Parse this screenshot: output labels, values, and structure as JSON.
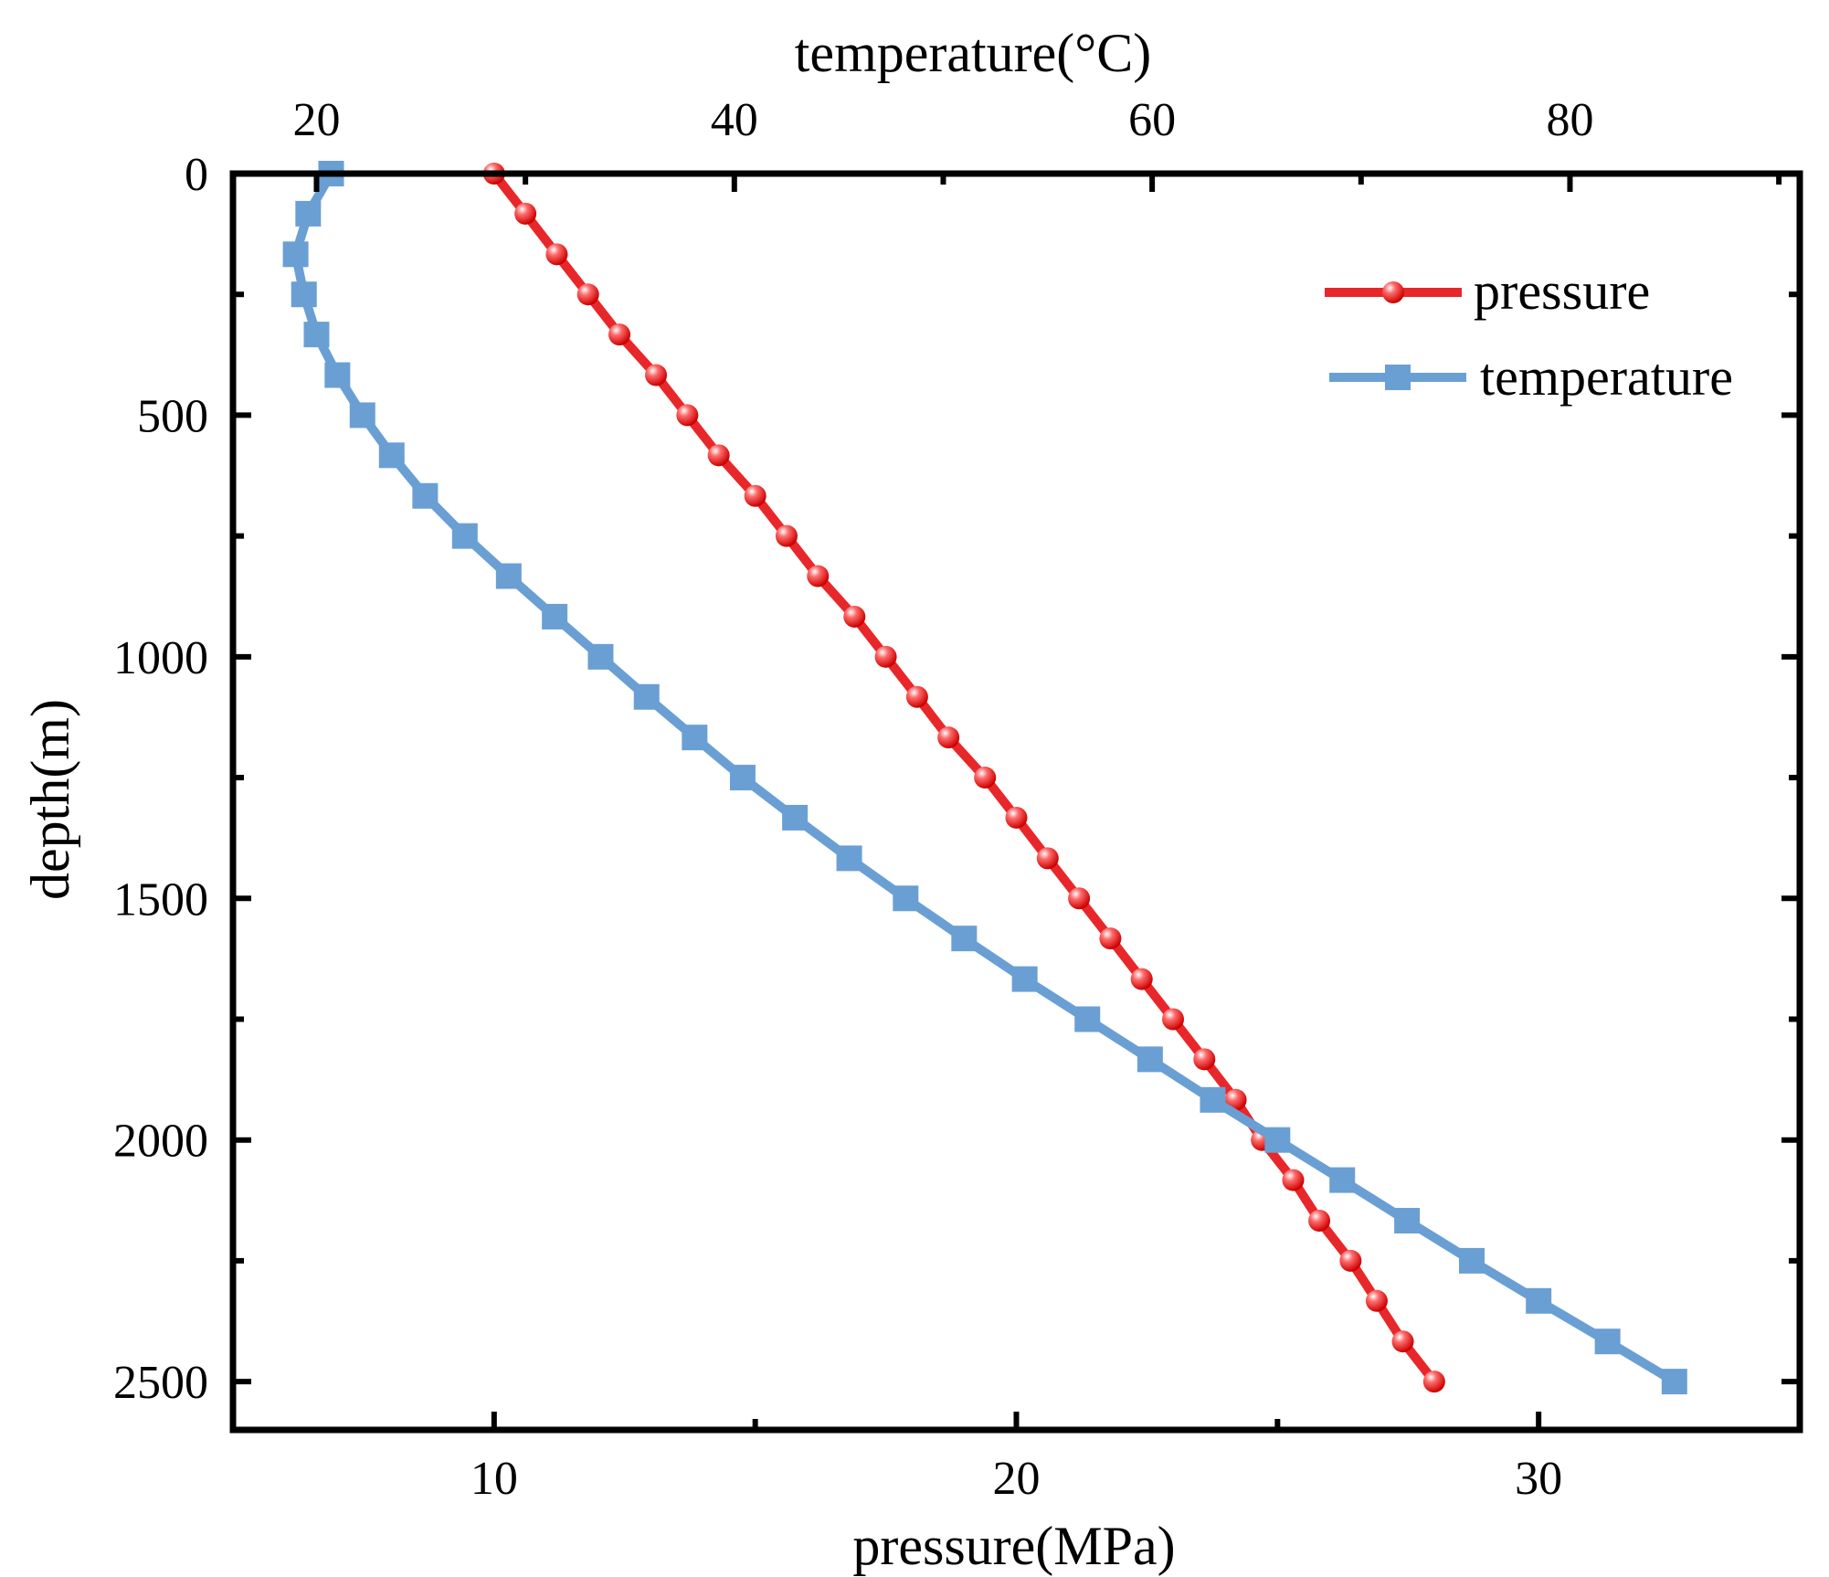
{
  "chart_data": {
    "type": "line",
    "xlabel_bottom": "pressure(MPa)",
    "xlabel_top": "temperature(°C)",
    "ylabel": "depth(m)",
    "ylim": [
      0,
      2600
    ],
    "y_inverted": true,
    "pressure_axis_lim": [
      5,
      35
    ],
    "temperature_axis_lim": [
      16,
      91
    ],
    "y_ticks": [
      0,
      500,
      1000,
      1500,
      2000,
      2500
    ],
    "y_tick_labels": [
      "0",
      "500",
      "1000",
      "1500",
      "2000",
      "2500"
    ],
    "bottom_ticks": [
      10,
      20,
      30
    ],
    "bottom_tick_labels": [
      "10",
      "20",
      "30"
    ],
    "top_ticks": [
      20,
      40,
      60,
      80
    ],
    "top_tick_labels": [
      "20",
      "40",
      "60",
      "80"
    ],
    "legend_position": "top-right",
    "grid": false,
    "series": [
      {
        "name": "pressure",
        "axis": "bottom",
        "color": "#e8272a",
        "marker": "circle",
        "points": [
          [
            10.0,
            0
          ],
          [
            10.6,
            83
          ],
          [
            11.2,
            167
          ],
          [
            11.8,
            250
          ],
          [
            12.4,
            333
          ],
          [
            13.1,
            417
          ],
          [
            13.7,
            500
          ],
          [
            14.3,
            583
          ],
          [
            15.0,
            667
          ],
          [
            15.6,
            750
          ],
          [
            16.2,
            833
          ],
          [
            16.9,
            917
          ],
          [
            17.5,
            1000
          ],
          [
            18.1,
            1083
          ],
          [
            18.7,
            1167
          ],
          [
            19.4,
            1250
          ],
          [
            20.0,
            1333
          ],
          [
            20.6,
            1417
          ],
          [
            21.2,
            1500
          ],
          [
            21.8,
            1583
          ],
          [
            22.4,
            1667
          ],
          [
            23.0,
            1750
          ],
          [
            23.6,
            1833
          ],
          [
            24.2,
            1917
          ],
          [
            24.7,
            2000
          ],
          [
            25.3,
            2083
          ],
          [
            25.8,
            2167
          ],
          [
            26.4,
            2250
          ],
          [
            26.9,
            2333
          ],
          [
            27.4,
            2417
          ],
          [
            28.0,
            2500
          ]
        ]
      },
      {
        "name": "temperature",
        "axis": "top",
        "color": "#6a9fd4",
        "marker": "square",
        "points": [
          [
            20.7,
            0
          ],
          [
            19.6,
            83
          ],
          [
            19.0,
            167
          ],
          [
            19.4,
            250
          ],
          [
            20.0,
            333
          ],
          [
            21.0,
            417
          ],
          [
            22.2,
            500
          ],
          [
            23.6,
            583
          ],
          [
            25.2,
            667
          ],
          [
            27.1,
            750
          ],
          [
            29.2,
            833
          ],
          [
            31.4,
            917
          ],
          [
            33.6,
            1000
          ],
          [
            35.8,
            1083
          ],
          [
            38.1,
            1167
          ],
          [
            40.4,
            1250
          ],
          [
            42.9,
            1333
          ],
          [
            45.5,
            1417
          ],
          [
            48.2,
            1500
          ],
          [
            51.0,
            1583
          ],
          [
            53.9,
            1667
          ],
          [
            56.9,
            1750
          ],
          [
            59.9,
            1833
          ],
          [
            62.9,
            1917
          ],
          [
            66.0,
            2000
          ],
          [
            69.1,
            2083
          ],
          [
            72.2,
            2167
          ],
          [
            75.3,
            2250
          ],
          [
            78.5,
            2333
          ],
          [
            81.8,
            2417
          ],
          [
            85.0,
            2500
          ]
        ]
      }
    ]
  }
}
